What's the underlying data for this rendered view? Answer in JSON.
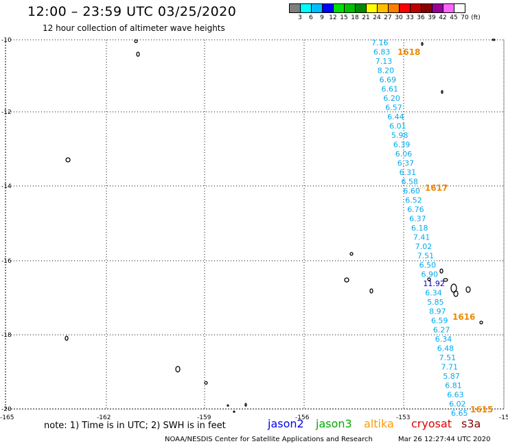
{
  "header": {
    "title": "12:00 – 23:59 UTC 03/25/2020",
    "subtitle": "12 hour collection of altimeter wave heights"
  },
  "color_scale": {
    "swatches": [
      "#7f7f7f",
      "#00ffff",
      "#00bfff",
      "#0000ff",
      "#00e000",
      "#00c000",
      "#008800",
      "#ffff00",
      "#ffc000",
      "#ff8000",
      "#ff0000",
      "#c00000",
      "#880000",
      "#990099",
      "#ff66ff",
      "#ffffff"
    ],
    "labels": [
      "3",
      "6",
      "9",
      "12",
      "15",
      "18",
      "21",
      "24",
      "27",
      "30",
      "33",
      "36",
      "39",
      "42",
      "45",
      "70",
      "(ft)"
    ]
  },
  "axes": {
    "lat_labels": [
      "-10",
      "-12",
      "-14",
      "-16",
      "-18",
      "-20"
    ],
    "lon_labels": [
      "-165",
      "-162",
      "-159",
      "-156",
      "-153",
      "-15"
    ]
  },
  "track": {
    "readings": [
      "7.16",
      "6.83",
      "7.13",
      "8.20",
      "6.69",
      "6.61",
      "6.20",
      "6.57",
      "6.44",
      "6.01",
      "5.98",
      "6.39",
      "6.06",
      "6.37",
      "6.31",
      "6.58",
      "6.60",
      "6.52",
      "6.76",
      "6.37",
      "6.18",
      "7.41",
      "7.02",
      "7.51",
      "6.50",
      "6.90",
      "11.92",
      "6.34",
      "5.85",
      "8.97",
      "6.59",
      "6.27",
      "6.34",
      "6.48",
      "7.51",
      "7.71",
      "5.87",
      "6.81",
      "6.63",
      "6.02",
      "6.65"
    ],
    "reading_colors": [
      "#00aaee",
      "#00aaee",
      "#00aaee",
      "#00aaee",
      "#00aaee",
      "#00aaee",
      "#00aaee",
      "#00aaee",
      "#00aaee",
      "#00aaee",
      "#00aaee",
      "#00aaee",
      "#00aaee",
      "#00aaee",
      "#00aaee",
      "#00aaee",
      "#00aaee",
      "#00aaee",
      "#00aaee",
      "#00aaee",
      "#00aaee",
      "#00aaee",
      "#00aaee",
      "#00aaee",
      "#00aaee",
      "#00aaee",
      "#0000cc",
      "#00aaee",
      "#00aaee",
      "#00aaee",
      "#00aaee",
      "#00aaee",
      "#00aaee",
      "#00aaee",
      "#00aaee",
      "#00aaee",
      "#00aaee",
      "#00aaee",
      "#00aaee",
      "#00aaee",
      "#00aaee"
    ],
    "time_marks": [
      "1618",
      "1617",
      "1616",
      "1615"
    ],
    "time_mark_color": "#ee8800"
  },
  "footer": {
    "note": "note: 1) Time is in UTC; 2) SWH is in feet",
    "satellites": [
      {
        "name": "jason2",
        "color": "#0000ee"
      },
      {
        "name": "jason3",
        "color": "#00aa00"
      },
      {
        "name": "altika",
        "color": "#ff9900"
      },
      {
        "name": "cryosat",
        "color": "#dd0000"
      },
      {
        "name": "s3a",
        "color": "#880000"
      }
    ],
    "credit": "NOAA/NESDIS Center for Satellite Applications and Research",
    "timestamp": "Mar 26 12:27:44 UTC 2020"
  }
}
